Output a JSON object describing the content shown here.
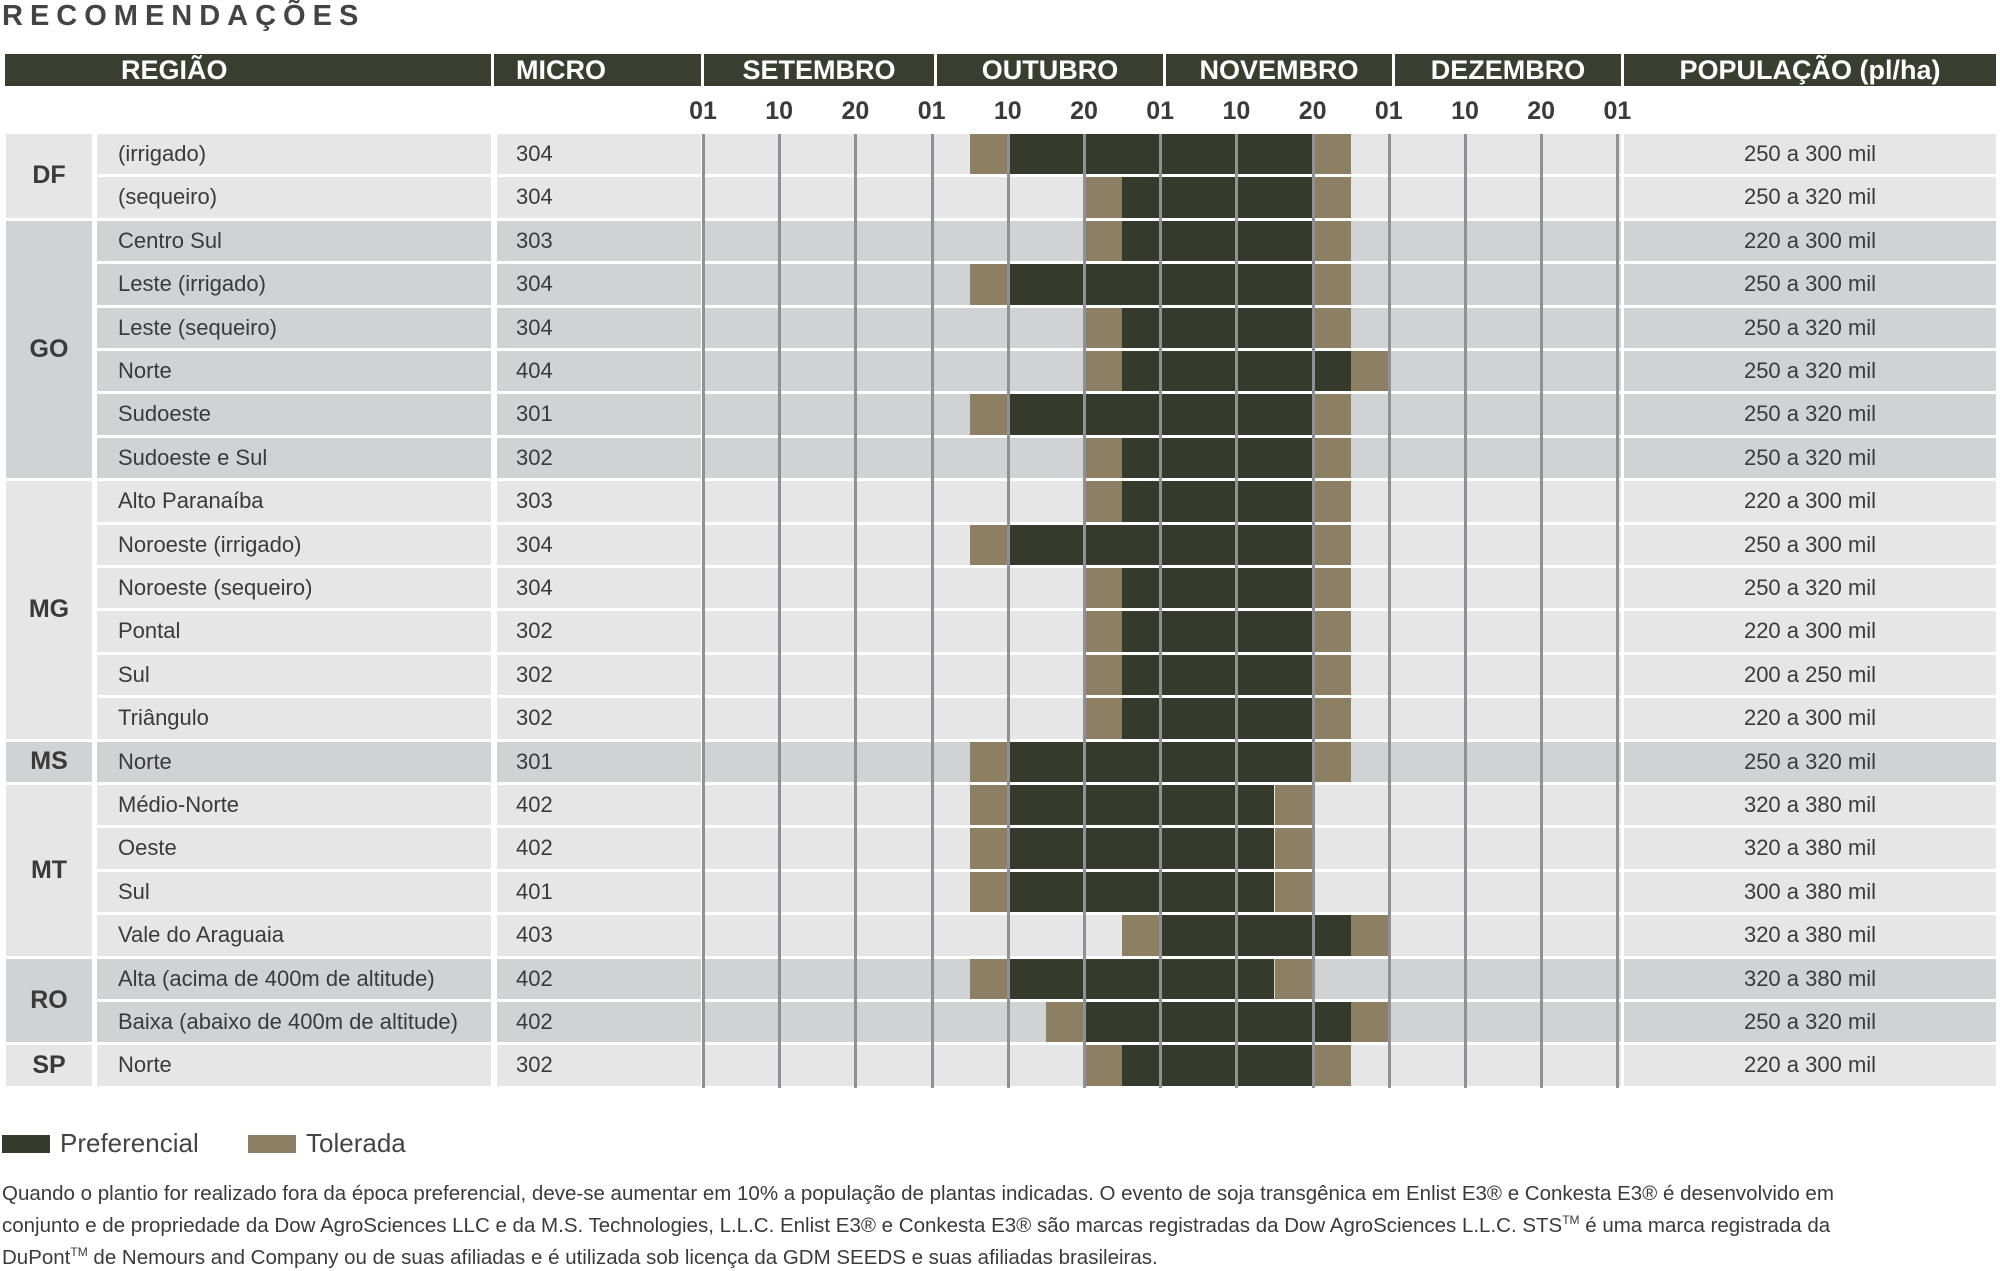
{
  "title": "RECOMENDAÇÕES",
  "headers": {
    "regiao": "REGIÃO",
    "micro": "MICRO",
    "months": [
      "SETEMBRO",
      "OUTUBRO",
      "NOVEMBRO",
      "DEZEMBRO"
    ],
    "populacao": "POPULAÇÃO (pl/ha)"
  },
  "ticks": [
    "01",
    "10",
    "20",
    "01",
    "10",
    "20",
    "01",
    "10",
    "20",
    "01",
    "10",
    "20",
    "01"
  ],
  "states": [
    {
      "name": "DF",
      "rows": 2
    },
    {
      "name": "GO",
      "rows": 6
    },
    {
      "name": "MG",
      "rows": 6
    },
    {
      "name": "MS",
      "rows": 1
    },
    {
      "name": "MT",
      "rows": 4
    },
    {
      "name": "RO",
      "rows": 2
    },
    {
      "name": "SP",
      "rows": 1
    }
  ],
  "rows": [
    {
      "region": "(irrigado)",
      "micro": "304",
      "tol_start": 3.5,
      "pref_start": 4,
      "pref_end": 8,
      "tol_end": 8.5,
      "pop": "250 a 300 mil"
    },
    {
      "region": "(sequeiro)",
      "micro": "304",
      "tol_start": 5,
      "pref_start": 5.5,
      "pref_end": 8,
      "tol_end": 8.5,
      "pop": "250 a 320 mil"
    },
    {
      "region": "Centro Sul",
      "micro": "303",
      "tol_start": 5,
      "pref_start": 5.5,
      "pref_end": 8,
      "tol_end": 8.5,
      "pop": "220 a 300 mil"
    },
    {
      "region": "Leste (irrigado)",
      "micro": "304",
      "tol_start": 3.5,
      "pref_start": 4,
      "pref_end": 8,
      "tol_end": 8.5,
      "pop": "250 a 300 mil"
    },
    {
      "region": "Leste (sequeiro)",
      "micro": "304",
      "tol_start": 5,
      "pref_start": 5.5,
      "pref_end": 8,
      "tol_end": 8.5,
      "pop": "250 a 320 mil"
    },
    {
      "region": "Norte",
      "micro": "404",
      "tol_start": 5,
      "pref_start": 5.5,
      "pref_end": 8.5,
      "tol_end": 9,
      "pop": "250 a 320 mil"
    },
    {
      "region": "Sudoeste",
      "micro": "301",
      "tol_start": 3.5,
      "pref_start": 4,
      "pref_end": 8,
      "tol_end": 8.5,
      "pop": "250 a 320 mil"
    },
    {
      "region": "Sudoeste e Sul",
      "micro": "302",
      "tol_start": 5,
      "pref_start": 5.5,
      "pref_end": 8,
      "tol_end": 8.5,
      "pop": "250 a 320 mil"
    },
    {
      "region": "Alto Paranaíba",
      "micro": "303",
      "tol_start": 5,
      "pref_start": 5.5,
      "pref_end": 8,
      "tol_end": 8.5,
      "pop": "220 a 300 mil"
    },
    {
      "region": "Noroeste (irrigado)",
      "micro": "304",
      "tol_start": 3.5,
      "pref_start": 4,
      "pref_end": 8,
      "tol_end": 8.5,
      "pop": "250 a 300 mil"
    },
    {
      "region": "Noroeste (sequeiro)",
      "micro": "304",
      "tol_start": 5,
      "pref_start": 5.5,
      "pref_end": 8,
      "tol_end": 8.5,
      "pop": "250 a 320 mil"
    },
    {
      "region": "Pontal",
      "micro": "302",
      "tol_start": 5,
      "pref_start": 5.5,
      "pref_end": 8,
      "tol_end": 8.5,
      "pop": "220 a 300 mil"
    },
    {
      "region": "Sul",
      "micro": "302",
      "tol_start": 5,
      "pref_start": 5.5,
      "pref_end": 8,
      "tol_end": 8.5,
      "pop": "200 a 250 mil"
    },
    {
      "region": "Triângulo",
      "micro": "302",
      "tol_start": 5,
      "pref_start": 5.5,
      "pref_end": 8,
      "tol_end": 8.5,
      "pop": "220 a 300 mil"
    },
    {
      "region": "Norte",
      "micro": "301",
      "tol_start": 3.5,
      "pref_start": 4,
      "pref_end": 8,
      "tol_end": 8.5,
      "pop": "250 a 320 mil"
    },
    {
      "region": "Médio-Norte",
      "micro": "402",
      "tol_start": 3.5,
      "pref_start": 4,
      "pref_end": 7.5,
      "tol_end": 8,
      "pop": "320 a 380 mil"
    },
    {
      "region": "Oeste",
      "micro": "402",
      "tol_start": 3.5,
      "pref_start": 4,
      "pref_end": 7.5,
      "tol_end": 8,
      "pop": "320 a 380 mil"
    },
    {
      "region": "Sul",
      "micro": "401",
      "tol_start": 3.5,
      "pref_start": 4,
      "pref_end": 7.5,
      "tol_end": 8,
      "pop": "300 a 380 mil"
    },
    {
      "region": "Vale do Araguaia",
      "micro": "403",
      "tol_start": 5.5,
      "pref_start": 6,
      "pref_end": 8.5,
      "tol_end": 9,
      "pop": "320 a 380 mil"
    },
    {
      "region": "Alta (acima de 400m de altitude)",
      "micro": "402",
      "tol_start": 3.5,
      "pref_start": 4,
      "pref_end": 7.5,
      "tol_end": 8,
      "pop": "320 a 380 mil"
    },
    {
      "region": "Baixa (abaixo de 400m de altitude)",
      "micro": "402",
      "tol_start": 4.5,
      "pref_start": 5,
      "pref_end": 8.5,
      "tol_end": 9,
      "pop": "250 a 320 mil"
    },
    {
      "region": "Norte",
      "micro": "302",
      "tol_start": 5,
      "pref_start": 5.5,
      "pref_end": 8,
      "tol_end": 8.5,
      "pop": "220 a 300 mil"
    }
  ],
  "legend": {
    "preferencial": "Preferencial",
    "tolerada": "Tolerada"
  },
  "colors": {
    "preferencial": "#353a2c",
    "tolerada": "#8d7f63",
    "header_bg": "#3a3e30",
    "row_light": "#e6e6e7",
    "row_dark": "#d1d2d4"
  },
  "footnote": {
    "line1": "Quando o plantio for realizado fora da época preferencial, deve-se aumentar em 10% a população de plantas indicadas. O evento de soja transgênica em Enlist E3® e Conkesta E3® é desenvolvido em",
    "line2a": "conjunto e de propriedade da Dow AgroSciences LLC e da M.S. Technologies, L.L.C. Enlist E3® e Conkesta E3® são marcas registradas da Dow AgroSciences L.L.C. STS",
    "tm": "TM",
    "line2b": " é uma marca registrada da",
    "line3a": "DuPont",
    "line3b": " de Nemours and Company ou de suas afiliadas e é utilizada sob licença da GDM SEEDS e suas afiliadas brasileiras."
  }
}
